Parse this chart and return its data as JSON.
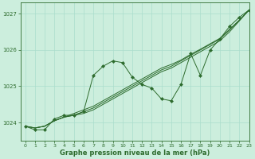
{
  "title": "Graphe pression niveau de la mer (hPa)",
  "background_color": "#cceedd",
  "grid_color": "#aaddcc",
  "line_color": "#2d6b2d",
  "marker_color": "#2d6b2d",
  "xlim": [
    -0.5,
    23
  ],
  "ylim": [
    1023.5,
    1027.3
  ],
  "yticks": [
    1024,
    1025,
    1026,
    1027
  ],
  "xticks": [
    0,
    1,
    2,
    3,
    4,
    5,
    6,
    7,
    8,
    9,
    10,
    11,
    12,
    13,
    14,
    15,
    16,
    17,
    18,
    19,
    20,
    21,
    22,
    23
  ],
  "s1": [
    1023.9,
    1023.8,
    1023.8,
    1024.1,
    1024.2,
    1024.2,
    1024.3,
    1025.3,
    1025.55,
    1025.7,
    1025.65,
    1025.25,
    1025.05,
    1024.95,
    1024.65,
    1024.6,
    1025.05,
    1025.9,
    1025.3,
    1026.0,
    1026.3,
    1026.65,
    1026.9,
    1027.1
  ],
  "s2": [
    1023.9,
    1023.85,
    1023.9,
    1024.05,
    1024.15,
    1024.2,
    1024.25,
    1024.35,
    1024.5,
    1024.65,
    1024.8,
    1024.95,
    1025.1,
    1025.25,
    1025.4,
    1025.5,
    1025.65,
    1025.8,
    1025.95,
    1026.1,
    1026.25,
    1026.5,
    1026.8,
    1027.1
  ],
  "s3": [
    1023.9,
    1023.85,
    1023.9,
    1024.05,
    1024.15,
    1024.2,
    1024.3,
    1024.4,
    1024.55,
    1024.7,
    1024.85,
    1025.0,
    1025.15,
    1025.3,
    1025.45,
    1025.55,
    1025.7,
    1025.85,
    1026.0,
    1026.15,
    1026.3,
    1026.55,
    1026.82,
    1027.1
  ],
  "s4": [
    1023.9,
    1023.85,
    1023.9,
    1024.05,
    1024.15,
    1024.25,
    1024.35,
    1024.45,
    1024.6,
    1024.75,
    1024.9,
    1025.05,
    1025.2,
    1025.35,
    1025.5,
    1025.6,
    1025.72,
    1025.88,
    1026.02,
    1026.17,
    1026.32,
    1026.57,
    1026.82,
    1027.1
  ],
  "title_fontsize": 6,
  "tick_fontsize": 5,
  "figwidth": 3.2,
  "figheight": 2.0,
  "dpi": 100
}
